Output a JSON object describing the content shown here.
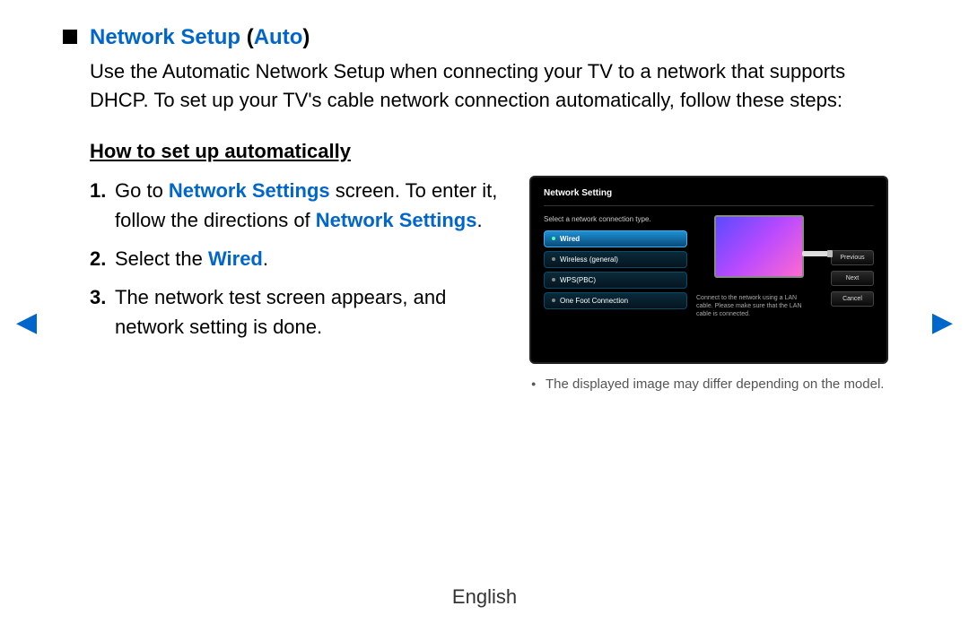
{
  "title": {
    "main": "Network Setup",
    "paren_open": " (",
    "mode": "Auto",
    "paren_close": ")"
  },
  "intro": "Use the Automatic Network Setup when connecting your TV to a network that supports DHCP. To set up your TV's cable network connection automatically, follow these steps:",
  "howto_heading": "How to set up automatically",
  "steps": {
    "s1_pre": "Go to ",
    "s1_link1": "Network Settings",
    "s1_mid": " screen. To enter it, follow the directions of ",
    "s1_link2": "Network Settings",
    "s1_post": ".",
    "s2_pre": "Select the ",
    "s2_link": "Wired",
    "s2_post": ".",
    "s3": "The network test screen appears, and network setting is done."
  },
  "screenshot": {
    "title": "Network Setting",
    "instruction": "Select a network connection type.",
    "options": [
      "Wired",
      "Wireless (general)",
      "WPS(PBC)",
      "One Foot Connection"
    ],
    "help": "Connect to the network using a LAN cable. Please make sure that the LAN cable is connected.",
    "buttons": [
      "Previous",
      "Next",
      "Cancel"
    ]
  },
  "caption": "The displayed image may differ depending on the model.",
  "footer_language": "English",
  "colors": {
    "link_blue": "#0066cc",
    "text_black": "#000000",
    "caption_gray": "#555555"
  }
}
